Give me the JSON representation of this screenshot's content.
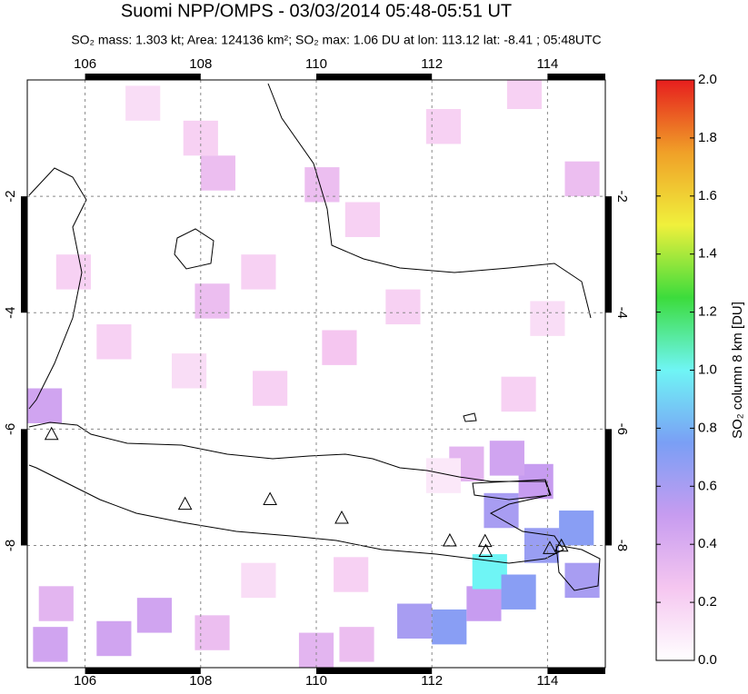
{
  "map": {
    "title": "Suomi NPP/OMPS - 03/03/2014 05:48-05:51 UT",
    "subtitle": "SO₂ mass: 1.303 kt; Area: 124136 km²; SO₂ max: 1.06 DU at lon: 113.12 lat: -8.41 ; 05:48UTC",
    "xlim": [
      105,
      115
    ],
    "ylim": [
      -10.1,
      0
    ],
    "xticks": [
      106,
      108,
      110,
      112,
      114
    ],
    "yticks": [
      -2,
      -4,
      -6,
      -8
    ],
    "grid": true,
    "colorbar": {
      "label": "SO₂ column 8 km [DU]",
      "lim": [
        0,
        2
      ],
      "colormap": [
        "#ffffff",
        "#f5c6f0",
        "#c79cf0",
        "#7a9ff5",
        "#6ff5f5",
        "#3cdc3c",
        "#f0f03c",
        "#f0a028",
        "#e61e1e"
      ],
      "ticks": [
        {
          "value": 0,
          "label": "0.0"
        },
        {
          "value": 0.2,
          "label": "0.2"
        },
        {
          "value": 0.4,
          "label": "0.4"
        },
        {
          "value": 0.6,
          "label": "0.6"
        },
        {
          "value": 0.8,
          "label": "0.8"
        },
        {
          "value": 1,
          "label": "1.0"
        },
        {
          "value": 1.2,
          "label": "1.2"
        },
        {
          "value": 1.4,
          "label": "1.4"
        },
        {
          "value": 1.6,
          "label": "1.6"
        },
        {
          "value": 1.8,
          "label": "1.8"
        },
        {
          "value": 2,
          "label": "2.0"
        }
      ]
    },
    "cells": [
      {
        "lon": 111.7,
        "lat": -9.3,
        "value": 0.6
      },
      {
        "lon": 112.3,
        "lat": -9.4,
        "value": 0.7
      },
      {
        "lon": 112.9,
        "lat": -9.0,
        "value": 0.5
      },
      {
        "lon": 113.0,
        "lat": -8.45,
        "value": 1.0
      },
      {
        "lon": 113.5,
        "lat": -8.8,
        "value": 0.7
      },
      {
        "lon": 113.9,
        "lat": -8.0,
        "value": 0.65
      },
      {
        "lon": 114.5,
        "lat": -7.7,
        "value": 0.7
      },
      {
        "lon": 114.6,
        "lat": -8.6,
        "value": 0.6
      },
      {
        "lon": 113.2,
        "lat": -7.4,
        "value": 0.6
      },
      {
        "lon": 113.8,
        "lat": -6.9,
        "value": 0.5
      },
      {
        "lon": 113.3,
        "lat": -6.5,
        "value": 0.45
      },
      {
        "lon": 112.6,
        "lat": -6.6,
        "value": 0.35
      },
      {
        "lon": 105.5,
        "lat": -9.0,
        "value": 0.35
      },
      {
        "lon": 106.5,
        "lat": -9.6,
        "value": 0.45
      },
      {
        "lon": 107.2,
        "lat": -9.2,
        "value": 0.45
      },
      {
        "lon": 105.4,
        "lat": -9.7,
        "value": 0.45
      },
      {
        "lon": 108.2,
        "lat": -9.5,
        "value": 0.3
      },
      {
        "lon": 110.0,
        "lat": -9.8,
        "value": 0.35
      },
      {
        "lon": 110.7,
        "lat": -9.7,
        "value": 0.3
      },
      {
        "lon": 105.3,
        "lat": -5.6,
        "value": 0.45
      },
      {
        "lon": 107.0,
        "lat": -0.4,
        "value": 0.15
      },
      {
        "lon": 108.0,
        "lat": -1.0,
        "value": 0.2
      },
      {
        "lon": 108.3,
        "lat": -1.6,
        "value": 0.3
      },
      {
        "lon": 110.1,
        "lat": -1.8,
        "value": 0.3
      },
      {
        "lon": 110.8,
        "lat": -2.4,
        "value": 0.2
      },
      {
        "lon": 112.2,
        "lat": -0.8,
        "value": 0.2
      },
      {
        "lon": 113.6,
        "lat": -0.2,
        "value": 0.2
      },
      {
        "lon": 114.6,
        "lat": -1.7,
        "value": 0.3
      },
      {
        "lon": 108.2,
        "lat": -3.8,
        "value": 0.3
      },
      {
        "lon": 109.0,
        "lat": -3.3,
        "value": 0.2
      },
      {
        "lon": 106.5,
        "lat": -4.5,
        "value": 0.2
      },
      {
        "lon": 109.2,
        "lat": -5.3,
        "value": 0.2
      },
      {
        "lon": 110.4,
        "lat": -4.6,
        "value": 0.25
      },
      {
        "lon": 111.5,
        "lat": -3.9,
        "value": 0.2
      },
      {
        "lon": 113.5,
        "lat": -5.4,
        "value": 0.2
      },
      {
        "lon": 105.8,
        "lat": -3.3,
        "value": 0.2
      },
      {
        "lon": 107.8,
        "lat": -5.0,
        "value": 0.15
      },
      {
        "lon": 112.2,
        "lat": -6.8,
        "value": 0.1
      },
      {
        "lon": 109.0,
        "lat": -8.6,
        "value": 0.15
      },
      {
        "lon": 110.6,
        "lat": -8.5,
        "value": 0.2
      },
      {
        "lon": 114.0,
        "lat": -4.1,
        "value": 0.15
      }
    ],
    "volcanoes": [
      {
        "lon": 105.42,
        "lat": -6.1
      },
      {
        "lon": 107.73,
        "lat": -7.3
      },
      {
        "lon": 109.2,
        "lat": -7.22
      },
      {
        "lon": 110.44,
        "lat": -7.54
      },
      {
        "lon": 112.31,
        "lat": -7.93
      },
      {
        "lon": 112.92,
        "lat": -7.94
      },
      {
        "lon": 112.93,
        "lat": -8.11
      },
      {
        "lon": 114.04,
        "lat": -8.06
      },
      {
        "lon": 114.24,
        "lat": -8.02
      }
    ]
  }
}
